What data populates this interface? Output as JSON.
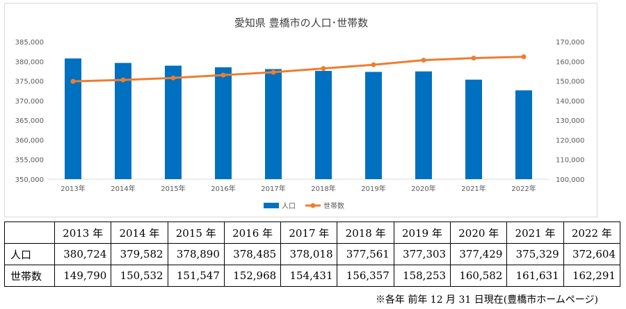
{
  "chart_data": {
    "type": "bar",
    "title": "愛知県 豊橋市の人口･世帯数",
    "categories": [
      "2013年",
      "2014年",
      "2015年",
      "2016年",
      "2017年",
      "2018年",
      "2019年",
      "2020年",
      "2021年",
      "2022年"
    ],
    "series": [
      {
        "name": "人口",
        "type": "bar",
        "axis": "left",
        "color": "#0070c0",
        "values": [
          380724,
          379582,
          378890,
          378485,
          378018,
          377561,
          377303,
          377429,
          375329,
          372604
        ]
      },
      {
        "name": "世帯数",
        "type": "line",
        "axis": "right",
        "color": "#ed7d31",
        "values": [
          149790,
          150532,
          151547,
          152968,
          154431,
          156357,
          158253,
          160582,
          161631,
          162291
        ]
      }
    ],
    "y_left": {
      "min": 350000,
      "max": 385000,
      "step": 5000,
      "ticks": [
        "350,000",
        "355,000",
        "360,000",
        "365,000",
        "370,000",
        "375,000",
        "380,000",
        "385,000"
      ]
    },
    "y_right": {
      "min": 100000,
      "max": 170000,
      "step": 10000,
      "ticks": [
        "100,000",
        "110,000",
        "120,000",
        "130,000",
        "140,000",
        "150,000",
        "160,000",
        "170,000"
      ]
    },
    "legend_position": "bottom",
    "grid": false
  },
  "table": {
    "headers": [
      "",
      "2013 年",
      "2014 年",
      "2015 年",
      "2016 年",
      "2017 年",
      "2018 年",
      "2019 年",
      "2020 年",
      "2021 年",
      "2022 年"
    ],
    "rows": [
      {
        "label": "人口",
        "values": [
          "380,724",
          "379,582",
          "378,890",
          "378,485",
          "378,018",
          "377,561",
          "377,303",
          "377,429",
          "375,329",
          "372,604"
        ]
      },
      {
        "label": "世帯数",
        "values": [
          "149,790",
          "150,532",
          "151,547",
          "152,968",
          "154,431",
          "156,357",
          "158,253",
          "160,582",
          "161,631",
          "162,291"
        ]
      }
    ]
  },
  "footnote": "※各年 前年 12 月 31 日現在(豊橋市ホームページ)"
}
